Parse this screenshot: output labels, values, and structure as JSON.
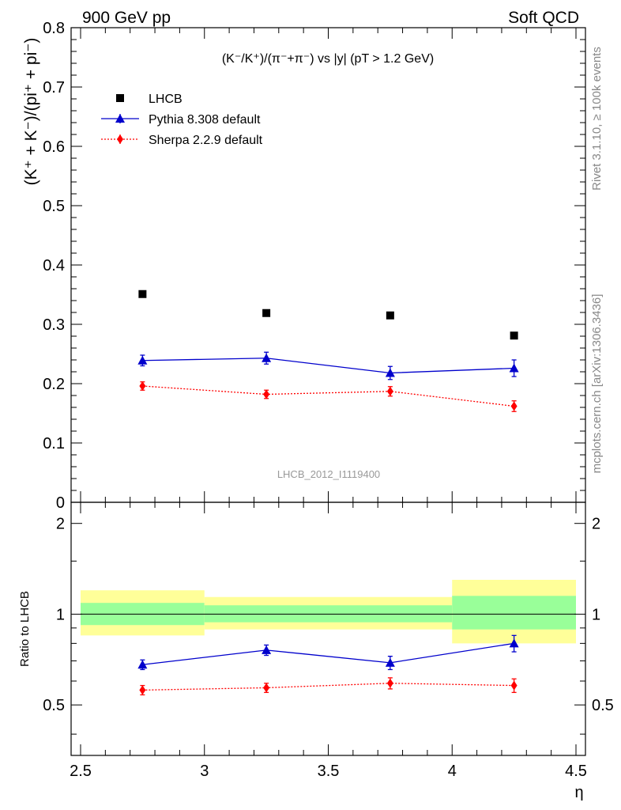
{
  "header": {
    "left": "900 GeV pp",
    "right": "Soft QCD"
  },
  "side_labels": {
    "top": "Rivet 3.1.10, ≥ 100k events",
    "bottom": "mcplots.cern.ch [arXiv:1306.3436]"
  },
  "watermark": "LHCB_2012_I1119400",
  "chart_data": [
    {
      "type": "scatter",
      "panel": "main",
      "title": "(K⁻/K⁺)/(π⁻+π⁻) vs |y| (pT > 1.2 GeV)",
      "ylabel": "(K⁺ + K⁻)/(pi⁺ + pi⁻)",
      "xlabel": "",
      "xlim": [
        2.5,
        4.5
      ],
      "ylim": [
        0,
        0.8
      ],
      "x_ticks": [
        2.5,
        3,
        3.5,
        4,
        4.5
      ],
      "y_ticks": [
        "0",
        "0.1",
        "0.2",
        "0.3",
        "0.4",
        "0.5",
        "0.6",
        "0.7",
        "0.8"
      ],
      "legend_position": "top-left",
      "x": [
        2.75,
        3.25,
        3.75,
        4.25
      ],
      "series": [
        {
          "name": "LHCB",
          "color": "#000000",
          "marker": "square",
          "values": [
            0.351,
            0.319,
            0.315,
            0.281
          ],
          "errors": [
            0.004,
            0.004,
            0.004,
            0.004
          ]
        },
        {
          "name": "Pythia 8.308 default",
          "color": "#0000cc",
          "marker": "triangle",
          "line": "solid",
          "values": [
            0.239,
            0.243,
            0.218,
            0.226
          ],
          "errors": [
            0.009,
            0.01,
            0.011,
            0.014
          ]
        },
        {
          "name": "Sherpa 2.2.9 default",
          "color": "#ff0000",
          "marker": "diamond",
          "line": "dotted",
          "values": [
            0.196,
            0.182,
            0.187,
            0.162
          ],
          "errors": [
            0.007,
            0.007,
            0.008,
            0.009
          ]
        }
      ]
    },
    {
      "type": "scatter",
      "panel": "ratio",
      "ylabel": "Ratio to LHCB",
      "xlabel": "η",
      "xlim": [
        2.5,
        4.5
      ],
      "ylim": [
        0.34,
        2.35
      ],
      "log_scale_y": true,
      "x_ticks": [
        2.5,
        3,
        3.5,
        4,
        4.5
      ],
      "y_ticks": [
        "0.5",
        "1",
        "2"
      ],
      "bands": [
        {
          "x_range": [
            2.5,
            3.0
          ],
          "inner": [
            0.92,
            1.09
          ],
          "outer": [
            0.85,
            1.2
          ]
        },
        {
          "x_range": [
            3.0,
            4.0
          ],
          "inner": [
            0.94,
            1.07
          ],
          "outer": [
            0.89,
            1.14
          ]
        },
        {
          "x_range": [
            4.0,
            4.5
          ],
          "inner": [
            0.89,
            1.15
          ],
          "outer": [
            0.8,
            1.3
          ]
        }
      ],
      "x": [
        2.75,
        3.25,
        3.75,
        4.25
      ],
      "series": [
        {
          "name": "Pythia 8.308 default",
          "color": "#0000cc",
          "marker": "triangle",
          "line": "solid",
          "values": [
            0.68,
            0.76,
            0.69,
            0.8
          ],
          "errors": [
            0.025,
            0.03,
            0.035,
            0.05
          ]
        },
        {
          "name": "Sherpa 2.2.9 default",
          "color": "#ff0000",
          "marker": "diamond",
          "line": "dotted",
          "values": [
            0.56,
            0.57,
            0.59,
            0.58
          ],
          "errors": [
            0.02,
            0.02,
            0.025,
            0.03
          ]
        }
      ]
    }
  ]
}
